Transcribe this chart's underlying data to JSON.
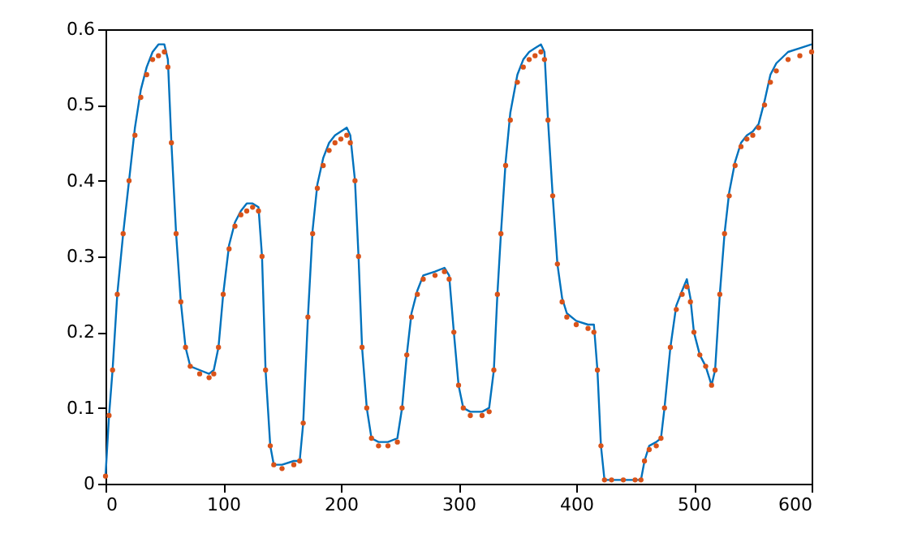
{
  "chart_data": {
    "type": "line",
    "x": [
      0,
      3,
      6,
      10,
      15,
      20,
      25,
      30,
      35,
      40,
      45,
      50,
      53,
      56,
      60,
      64,
      68,
      72,
      80,
      88,
      92,
      96,
      100,
      105,
      110,
      115,
      120,
      125,
      130,
      133,
      136,
      140,
      143,
      150,
      160,
      165,
      168,
      172,
      176,
      180,
      185,
      190,
      195,
      200,
      205,
      208,
      212,
      215,
      218,
      222,
      226,
      232,
      240,
      248,
      252,
      256,
      260,
      265,
      270,
      280,
      288,
      292,
      296,
      300,
      304,
      310,
      320,
      326,
      330,
      333,
      336,
      340,
      344,
      350,
      355,
      360,
      365,
      370,
      373,
      376,
      380,
      384,
      388,
      392,
      400,
      410,
      415,
      418,
      421,
      424,
      430,
      440,
      450,
      455,
      458,
      462,
      468,
      472,
      475,
      480,
      485,
      490,
      494,
      497,
      500,
      505,
      510,
      515,
      518,
      522,
      526,
      530,
      535,
      540,
      545,
      550,
      555,
      560,
      565,
      570,
      580,
      590,
      600
    ],
    "xlim": [
      0,
      600
    ],
    "xticks": [
      0,
      100,
      200,
      300,
      400,
      500,
      600
    ],
    "ylim": [
      0,
      0.6
    ],
    "yticks": [
      0,
      0.1,
      0.2,
      0.3,
      0.4,
      0.5,
      0.6
    ],
    "grid": false,
    "series": [
      {
        "type": "line",
        "color": "#0072bd",
        "line_style": "solid",
        "marker": "none",
        "values": [
          0.01,
          0.09,
          0.15,
          0.25,
          0.33,
          0.4,
          0.47,
          0.52,
          0.55,
          0.57,
          0.58,
          0.58,
          0.56,
          0.45,
          0.33,
          0.24,
          0.18,
          0.155,
          0.15,
          0.145,
          0.15,
          0.18,
          0.25,
          0.315,
          0.345,
          0.36,
          0.37,
          0.37,
          0.365,
          0.3,
          0.15,
          0.05,
          0.025,
          0.025,
          0.03,
          0.03,
          0.08,
          0.22,
          0.335,
          0.395,
          0.43,
          0.45,
          0.46,
          0.465,
          0.47,
          0.46,
          0.4,
          0.3,
          0.18,
          0.1,
          0.06,
          0.055,
          0.055,
          0.06,
          0.1,
          0.17,
          0.225,
          0.255,
          0.275,
          0.28,
          0.285,
          0.275,
          0.2,
          0.13,
          0.1,
          0.095,
          0.095,
          0.1,
          0.15,
          0.25,
          0.33,
          0.425,
          0.49,
          0.54,
          0.56,
          0.57,
          0.575,
          0.58,
          0.57,
          0.48,
          0.38,
          0.29,
          0.245,
          0.225,
          0.215,
          0.21,
          0.21,
          0.15,
          0.05,
          0.005,
          0.005,
          0.005,
          0.005,
          0.005,
          0.03,
          0.05,
          0.055,
          0.06,
          0.1,
          0.18,
          0.235,
          0.255,
          0.27,
          0.245,
          0.2,
          0.17,
          0.155,
          0.13,
          0.15,
          0.25,
          0.33,
          0.385,
          0.425,
          0.45,
          0.46,
          0.465,
          0.475,
          0.505,
          0.54,
          0.555,
          0.57,
          0.575,
          0.58
        ]
      },
      {
        "type": "scatter",
        "color": "#d95319",
        "marker": "circle",
        "values": [
          0.01,
          0.09,
          0.15,
          0.25,
          0.33,
          0.4,
          0.46,
          0.51,
          0.54,
          0.56,
          0.565,
          0.57,
          0.55,
          0.45,
          0.33,
          0.24,
          0.18,
          0.155,
          0.145,
          0.14,
          0.145,
          0.18,
          0.25,
          0.31,
          0.34,
          0.355,
          0.36,
          0.365,
          0.36,
          0.3,
          0.15,
          0.05,
          0.025,
          0.02,
          0.025,
          0.03,
          0.08,
          0.22,
          0.33,
          0.39,
          0.42,
          0.44,
          0.45,
          0.455,
          0.46,
          0.45,
          0.4,
          0.3,
          0.18,
          0.1,
          0.06,
          0.05,
          0.05,
          0.055,
          0.1,
          0.17,
          0.22,
          0.25,
          0.27,
          0.275,
          0.28,
          0.27,
          0.2,
          0.13,
          0.1,
          0.09,
          0.09,
          0.095,
          0.15,
          0.25,
          0.33,
          0.42,
          0.48,
          0.53,
          0.55,
          0.56,
          0.565,
          0.57,
          0.56,
          0.48,
          0.38,
          0.29,
          0.24,
          0.22,
          0.21,
          0.205,
          0.2,
          0.15,
          0.05,
          0.005,
          0.005,
          0.005,
          0.005,
          0.005,
          0.03,
          0.045,
          0.05,
          0.06,
          0.1,
          0.18,
          0.23,
          0.25,
          0.26,
          0.24,
          0.2,
          0.17,
          0.155,
          0.13,
          0.15,
          0.25,
          0.33,
          0.38,
          0.42,
          0.445,
          0.455,
          0.46,
          0.47,
          0.5,
          0.53,
          0.545,
          0.56,
          0.565,
          0.57
        ]
      }
    ]
  }
}
